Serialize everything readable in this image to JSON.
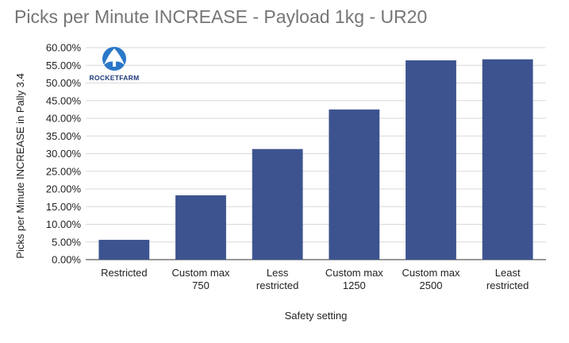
{
  "chart_data": {
    "type": "bar",
    "title": "Picks per Minute INCREASE - Payload 1kg - UR20",
    "xlabel": "Safety setting",
    "ylabel": "Picks per Minute INCREASE in Pally 3.4",
    "categories": [
      [
        "Restricted"
      ],
      [
        "Custom max",
        "750"
      ],
      [
        "Less",
        "restricted"
      ],
      [
        "Custom max",
        "1250"
      ],
      [
        "Custom max",
        "2500"
      ],
      [
        "Least",
        "restricted"
      ]
    ],
    "values": [
      5.6,
      18.2,
      31.3,
      42.5,
      56.4,
      56.7
    ],
    "ylim": [
      0,
      60
    ],
    "ytick_step": 5,
    "ytick_format": "percent_2dp",
    "grid": true,
    "bar_color": "#3d5390",
    "grid_color": "#d9d9d9"
  },
  "logo": {
    "text": "ROCKETFARM",
    "color": "#1f3a7a",
    "icon": "rocketfarm-logo-icon"
  }
}
